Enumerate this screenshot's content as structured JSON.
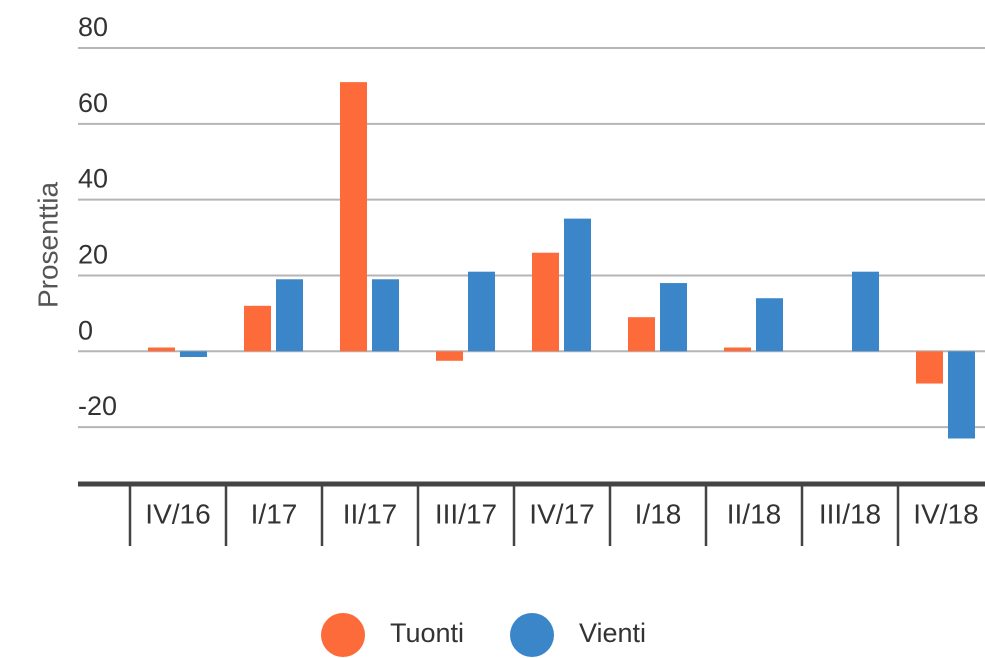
{
  "chart_data": {
    "type": "bar",
    "y_label": "Prosenttia",
    "categories": [
      "IV/16",
      "I/17",
      "II/17",
      "III/17",
      "IV/17",
      "I/18",
      "II/18",
      "III/18",
      "IV/18"
    ],
    "series": [
      {
        "name": "Tuonti",
        "color": "#fe6b3a",
        "values": [
          1,
          12,
          71,
          -2.5,
          26,
          9,
          1,
          0,
          -8.5
        ]
      },
      {
        "name": "Vienti",
        "color": "#3b86c9",
        "values": [
          -1.5,
          19,
          19,
          21,
          35,
          18,
          14,
          21,
          -23
        ]
      }
    ],
    "ylim": [
      -35,
      80
    ],
    "yticks": [
      -20,
      0,
      20,
      40,
      60,
      80
    ],
    "grid": true,
    "legend": "bottom"
  }
}
